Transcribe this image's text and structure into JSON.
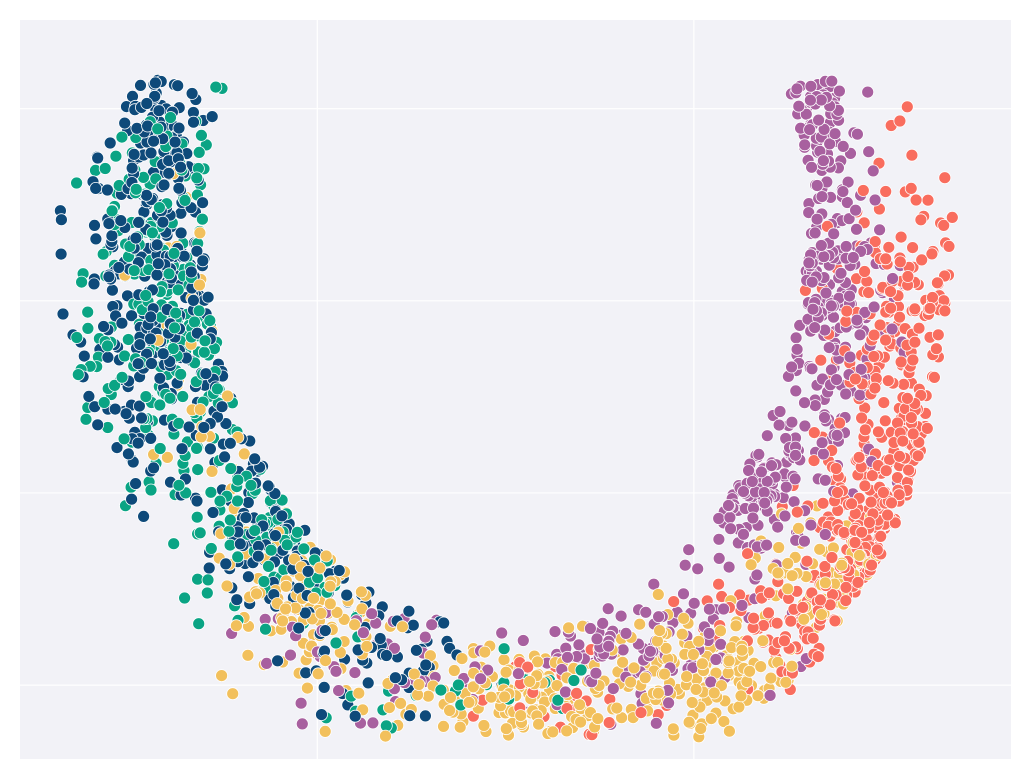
{
  "chart_data": {
    "type": "scatter",
    "title": "",
    "xlabel": "",
    "ylabel": "",
    "xlim": [
      0,
      100
    ],
    "ylim": [
      0,
      100
    ],
    "grid": true,
    "x_gridlines": [
      30,
      68
    ],
    "y_gridlines": [
      10,
      36,
      62,
      88
    ],
    "legend": "none",
    "background": "#f2f2f7",
    "gridline_color": "#ffffff",
    "marker_edge_color": "#ffffff",
    "series": [
      {
        "color": "#0e4a7a",
        "clusters": [
          {
            "cx": 15,
            "cy": 65,
            "sx": 5,
            "sy": 14,
            "n": 300
          },
          {
            "cx": 14,
            "cy": 86,
            "sx": 2,
            "sy": 5,
            "n": 50
          },
          {
            "cx": 27,
            "cy": 33,
            "sx": 5,
            "sy": 6,
            "n": 110
          },
          {
            "cx": 37,
            "cy": 17,
            "sx": 5,
            "sy": 6,
            "n": 60
          }
        ]
      },
      {
        "color": "#0aa484",
        "clusters": [
          {
            "cx": 16,
            "cy": 62,
            "sx": 5,
            "sy": 14,
            "n": 260
          },
          {
            "cx": 29,
            "cy": 32,
            "sx": 5,
            "sy": 6,
            "n": 90
          },
          {
            "cx": 45,
            "cy": 9,
            "sx": 8,
            "sy": 3,
            "n": 30
          }
        ]
      },
      {
        "color": "#f2c05c",
        "clusters": [
          {
            "cx": 30,
            "cy": 21,
            "sx": 5,
            "sy": 6,
            "n": 110
          },
          {
            "cx": 50,
            "cy": 7,
            "sx": 8,
            "sy": 4,
            "n": 160
          },
          {
            "cx": 68,
            "cy": 12,
            "sx": 6,
            "sy": 4,
            "n": 140
          },
          {
            "cx": 83,
            "cy": 24,
            "sx": 5,
            "sy": 5,
            "n": 70
          },
          {
            "cx": 22,
            "cy": 55,
            "sx": 5,
            "sy": 15,
            "n": 35
          }
        ]
      },
      {
        "color": "#a8609f",
        "clusters": [
          {
            "cx": 79,
            "cy": 88,
            "sx": 2.5,
            "sy": 5,
            "n": 70
          },
          {
            "cx": 81,
            "cy": 62,
            "sx": 3.5,
            "sy": 11,
            "n": 230
          },
          {
            "cx": 73,
            "cy": 38,
            "sx": 3.5,
            "sy": 5,
            "n": 110
          },
          {
            "cx": 61,
            "cy": 16,
            "sx": 7,
            "sy": 5,
            "n": 120
          },
          {
            "cx": 34,
            "cy": 14,
            "sx": 6,
            "sy": 5,
            "n": 45
          }
        ]
      },
      {
        "color": "#f96d5e",
        "clusters": [
          {
            "cx": 89,
            "cy": 58,
            "sx": 3.5,
            "sy": 11,
            "n": 200
          },
          {
            "cx": 88,
            "cy": 32,
            "sx": 4,
            "sy": 6,
            "n": 190
          },
          {
            "cx": 80,
            "cy": 18,
            "sx": 5,
            "sy": 4,
            "n": 90
          },
          {
            "cx": 56,
            "cy": 7,
            "sx": 7,
            "sy": 3,
            "n": 30
          }
        ]
      }
    ]
  }
}
